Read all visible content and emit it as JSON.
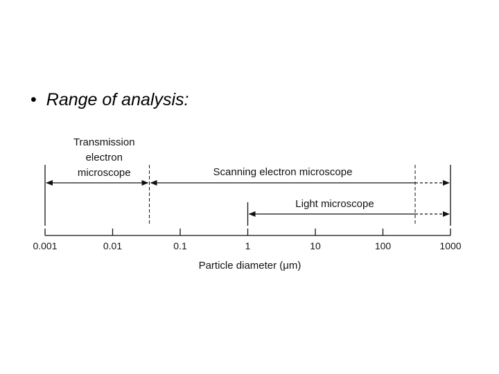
{
  "slide": {
    "bullet_marker": "•",
    "bullet_text": "Range of analysis:"
  },
  "diagram": {
    "axis": {
      "scale": "log",
      "ticks": [
        "0.001",
        "0.01",
        "0.1",
        "1",
        "10",
        "100",
        "1000"
      ],
      "label": "Particle diameter (μm)"
    },
    "ranges": [
      {
        "id": "tem",
        "label_lines": [
          "Transmission",
          "electron",
          "microscope"
        ],
        "from": 0.001,
        "to": 0.035,
        "dashed_from": null
      },
      {
        "id": "sem",
        "label_lines": [
          "Scanning electron microscope"
        ],
        "from": 0.035,
        "to": 1000,
        "dashed_from": 300
      },
      {
        "id": "lm",
        "label_lines": [
          "Light microscope"
        ],
        "from": 1,
        "to": 1000,
        "dashed_from": 300
      }
    ],
    "boundaries": [
      {
        "value": 0.001,
        "style": "solid"
      },
      {
        "value": 0.035,
        "style": "dashed"
      },
      {
        "value": 1,
        "style": "solid"
      },
      {
        "value": 300,
        "style": "dashed"
      },
      {
        "value": 1000,
        "style": "solid"
      }
    ]
  }
}
